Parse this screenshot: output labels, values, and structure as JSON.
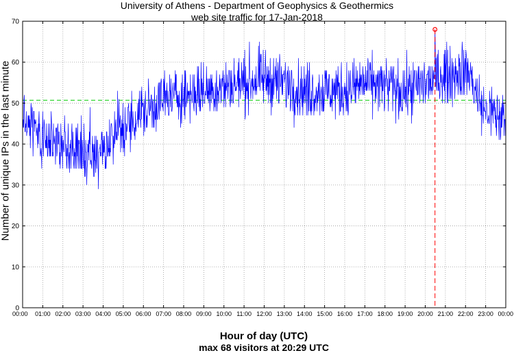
{
  "chart_data": {
    "type": "line",
    "title": "University of Athens - Department of Geophysics & Geothermics",
    "subtitle": "web site traffic for 17-Jan-2018",
    "xlabel": "Hour of day (UTC)",
    "ylabel": "Number of unique IPs in the last minute",
    "footer": "max 68 visitors at 20:29 UTC",
    "xlim_minutes": [
      0,
      1440
    ],
    "ylim": [
      0,
      70
    ],
    "x_tick_labels": [
      "00:00",
      "01:00",
      "02:00",
      "03:00",
      "04:00",
      "05:00",
      "06:00",
      "07:00",
      "08:00",
      "09:00",
      "10:00",
      "11:00",
      "12:00",
      "13:00",
      "14:00",
      "15:00",
      "16:00",
      "17:00",
      "18:00",
      "19:00",
      "20:00",
      "21:00",
      "22:00",
      "23:00",
      "00:00"
    ],
    "y_ticks": [
      0,
      10,
      20,
      30,
      40,
      50,
      60,
      70
    ],
    "grid": true,
    "mean_line": 50.7,
    "max": {
      "time": "20:29",
      "value": 68
    },
    "series": [
      {
        "color": "#0000ff",
        "hourly_trend": [
          {
            "x": "00:00",
            "y": 46
          },
          {
            "x": "01:00",
            "y": 42
          },
          {
            "x": "02:00",
            "y": 39
          },
          {
            "x": "03:00",
            "y": 38
          },
          {
            "x": "04:00",
            "y": 39
          },
          {
            "x": "05:00",
            "y": 44
          },
          {
            "x": "06:00",
            "y": 48
          },
          {
            "x": "07:00",
            "y": 51
          },
          {
            "x": "08:00",
            "y": 52
          },
          {
            "x": "09:00",
            "y": 53
          },
          {
            "x": "10:00",
            "y": 54
          },
          {
            "x": "11:00",
            "y": 55
          },
          {
            "x": "12:00",
            "y": 56
          },
          {
            "x": "13:00",
            "y": 55
          },
          {
            "x": "14:00",
            "y": 53
          },
          {
            "x": "15:00",
            "y": 53
          },
          {
            "x": "16:00",
            "y": 53
          },
          {
            "x": "17:00",
            "y": 55
          },
          {
            "x": "18:00",
            "y": 54
          },
          {
            "x": "19:00",
            "y": 53
          },
          {
            "x": "20:00",
            "y": 55
          },
          {
            "x": "21:00",
            "y": 57
          },
          {
            "x": "22:00",
            "y": 58
          },
          {
            "x": "23:00",
            "y": 48
          },
          {
            "x": "00:00",
            "y": 46
          }
        ]
      }
    ],
    "colors": {
      "series": "#0000ff",
      "mean": "#00cc00",
      "max_marker": "#ff0000"
    }
  }
}
